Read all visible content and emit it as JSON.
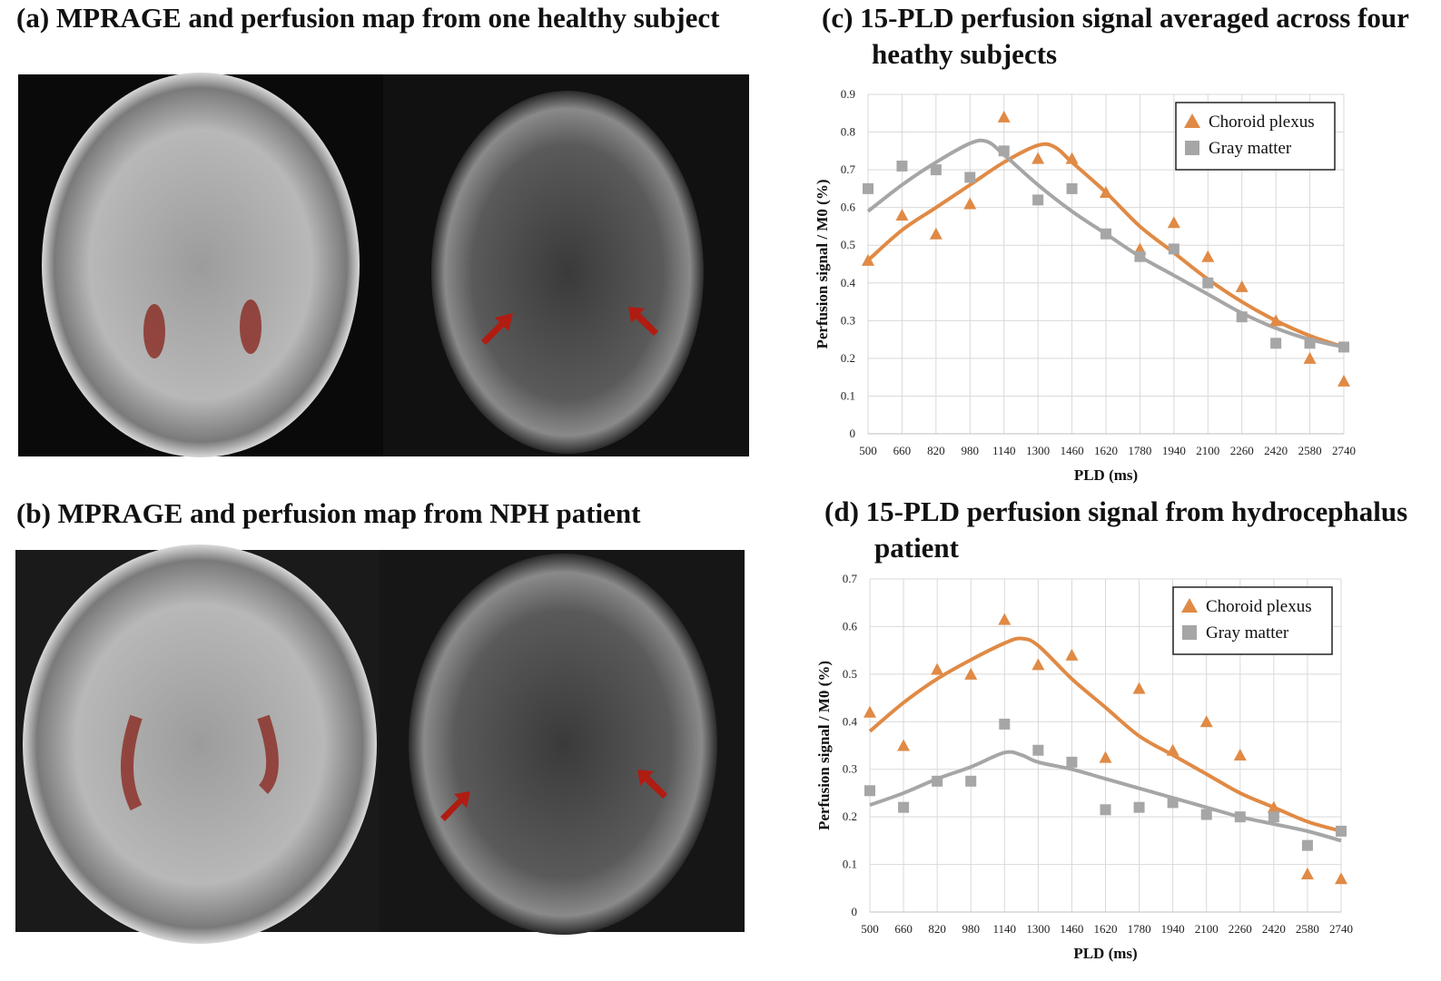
{
  "panels": [
    {
      "title": "(a)   MPRAGE and perfusion map from one healthy subject"
    },
    {
      "title": "(b) MPRAGE and perfusion map from NPH patient"
    }
  ],
  "chart_data": [
    {
      "type": "scatter",
      "title": "(c) 15-PLD perfusion signal averaged across four heathy subjects",
      "x_label": "PLD (ms)",
      "y_label": "Perfusion signal / M0 (%)",
      "x": [
        500,
        660,
        820,
        980,
        1140,
        1300,
        1460,
        1620,
        1780,
        1940,
        2100,
        2260,
        2420,
        2580,
        2740
      ],
      "xlim": [
        500,
        2740
      ],
      "xticks": [
        500,
        660,
        820,
        980,
        1140,
        1300,
        1460,
        1620,
        1780,
        1940,
        2100,
        2260,
        2420,
        2580,
        2740
      ],
      "ylim": [
        0,
        0.9
      ],
      "yticks": [
        0,
        0.1,
        0.2,
        0.3,
        0.4,
        0.5,
        0.6,
        0.7,
        0.8,
        0.9
      ],
      "grid": true,
      "legend": "upper right",
      "series": [
        {
          "name": "Choroid plexus",
          "color": "#e08a45",
          "marker": "triangle",
          "values": [
            0.46,
            0.58,
            0.53,
            0.61,
            0.84,
            0.73,
            0.73,
            0.64,
            0.49,
            0.56,
            0.47,
            0.39,
            0.3,
            0.2,
            0.14
          ],
          "fit": {
            "x": [
              500,
              660,
              820,
              980,
              1140,
              1300,
              1380,
              1460,
              1620,
              1780,
              1940,
              2100,
              2260,
              2420,
              2580,
              2740
            ],
            "values": [
              0.46,
              0.54,
              0.6,
              0.66,
              0.72,
              0.765,
              0.76,
              0.72,
              0.64,
              0.55,
              0.48,
              0.41,
              0.35,
              0.3,
              0.26,
              0.23
            ]
          }
        },
        {
          "name": "Gray matter",
          "color": "#a6a6a6",
          "marker": "square",
          "values": [
            0.65,
            0.71,
            0.7,
            0.68,
            0.75,
            0.62,
            0.65,
            0.53,
            0.47,
            0.49,
            0.4,
            0.31,
            0.24,
            0.24,
            0.23
          ],
          "fit": {
            "x": [
              500,
              660,
              820,
              980,
              1060,
              1140,
              1300,
              1460,
              1620,
              1780,
              1940,
              2100,
              2260,
              2420,
              2580,
              2740
            ],
            "values": [
              0.59,
              0.66,
              0.72,
              0.77,
              0.775,
              0.74,
              0.66,
              0.59,
              0.53,
              0.47,
              0.42,
              0.37,
              0.32,
              0.28,
              0.25,
              0.23
            ]
          }
        }
      ]
    },
    {
      "type": "scatter",
      "title": "(d) 15-PLD perfusion signal from hydrocephalus patient",
      "x_label": "PLD (ms)",
      "y_label": "Perfusion signal / M0 (%)",
      "x": [
        500,
        660,
        820,
        980,
        1140,
        1300,
        1460,
        1620,
        1780,
        1940,
        2100,
        2260,
        2420,
        2580,
        2740
      ],
      "xlim": [
        500,
        2740
      ],
      "xticks": [
        500,
        660,
        820,
        980,
        1140,
        1300,
        1460,
        1620,
        1780,
        1940,
        2100,
        2260,
        2420,
        2580,
        2740
      ],
      "ylim": [
        0,
        0.7
      ],
      "yticks": [
        0,
        0.1,
        0.2,
        0.3,
        0.4,
        0.5,
        0.6,
        0.7
      ],
      "grid": true,
      "legend": "upper right",
      "series": [
        {
          "name": "Choroid plexus",
          "color": "#e08a45",
          "marker": "triangle",
          "values": [
            0.42,
            0.35,
            0.51,
            0.5,
            0.615,
            0.52,
            0.54,
            0.325,
            0.47,
            0.34,
            0.4,
            0.33,
            0.22,
            0.08,
            0.07
          ],
          "fit": {
            "x": [
              500,
              660,
              820,
              980,
              1140,
              1220,
              1300,
              1460,
              1620,
              1780,
              1940,
              2100,
              2260,
              2420,
              2580,
              2740
            ],
            "values": [
              0.38,
              0.44,
              0.49,
              0.53,
              0.565,
              0.575,
              0.56,
              0.49,
              0.43,
              0.37,
              0.33,
              0.29,
              0.25,
              0.22,
              0.19,
              0.17
            ]
          }
        },
        {
          "name": "Gray matter",
          "color": "#a6a6a6",
          "marker": "square",
          "values": [
            0.255,
            0.22,
            0.275,
            0.275,
            0.395,
            0.34,
            0.315,
            0.215,
            0.22,
            0.23,
            0.205,
            0.2,
            0.2,
            0.14,
            0.17
          ],
          "fit": {
            "x": [
              500,
              660,
              820,
              980,
              1140,
              1220,
              1300,
              1460,
              1620,
              1780,
              1940,
              2100,
              2260,
              2420,
              2580,
              2740
            ],
            "values": [
              0.225,
              0.25,
              0.28,
              0.305,
              0.335,
              0.33,
              0.315,
              0.3,
              0.28,
              0.26,
              0.24,
              0.22,
              0.2,
              0.185,
              0.17,
              0.15
            ]
          }
        }
      ]
    }
  ]
}
